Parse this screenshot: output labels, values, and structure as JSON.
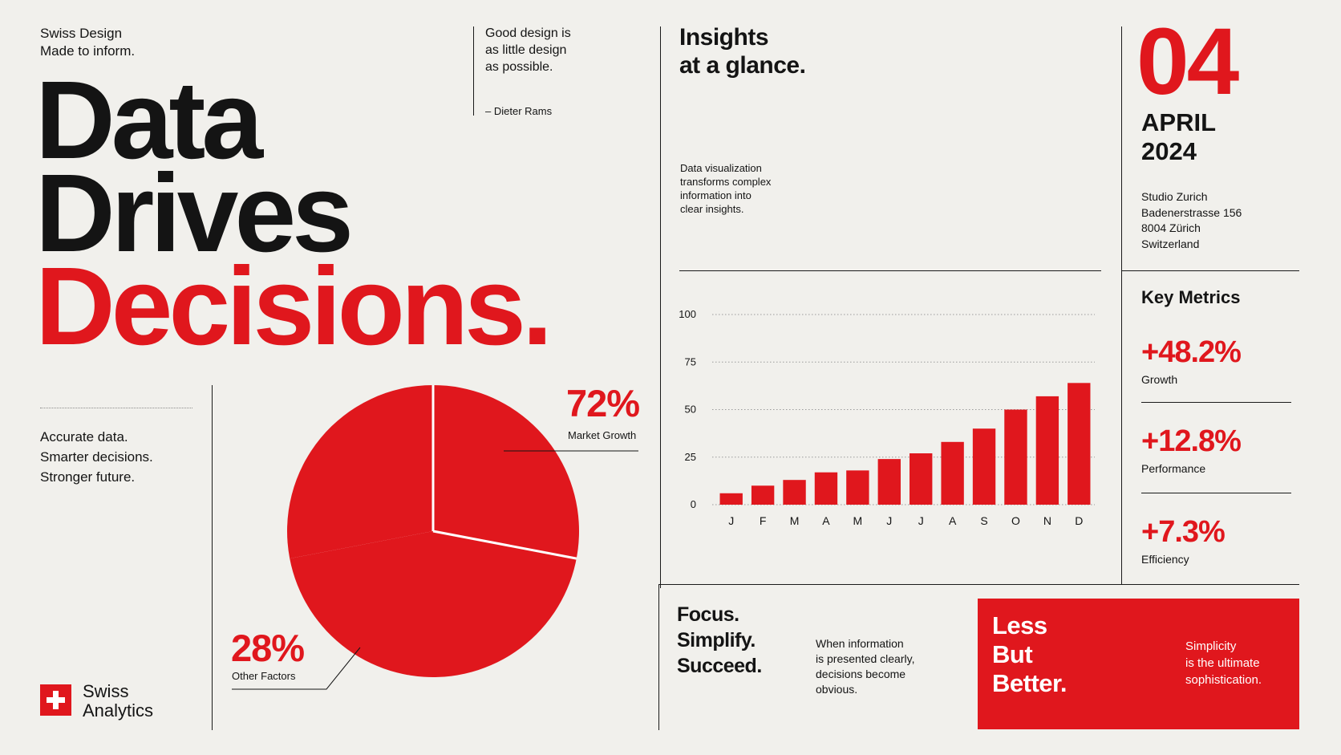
{
  "header": {
    "brand_line1": "Swiss Design",
    "brand_line2": "Made to inform.",
    "headline_line1": "Data",
    "headline_line2": "Drives",
    "headline_line3": "Decisions.",
    "quote_line1": "Good design is",
    "quote_line2": "as little design",
    "quote_line3": "as possible.",
    "quote_author": "– Dieter Rams"
  },
  "tagline": [
    "Accurate data.",
    "Smarter decisions.",
    "Stronger future."
  ],
  "insights": {
    "title_line1": "Insights",
    "title_line2": "at a glance.",
    "desc": [
      "Data visualization",
      "transforms complex",
      "information into",
      "clear insights."
    ]
  },
  "date": {
    "day": "04",
    "month": "APRIL",
    "year": "2024"
  },
  "address": [
    "Studio Zurich",
    "Badenerstrasse 156",
    "8004 Zürich",
    "Switzerland"
  ],
  "metrics": {
    "title": "Key Metrics",
    "items": [
      {
        "value": "+48.2%",
        "label": "Growth"
      },
      {
        "value": "+12.8%",
        "label": "Performance"
      },
      {
        "value": "+7.3%",
        "label": "Efficiency"
      }
    ]
  },
  "focus": {
    "lines": [
      "Focus.",
      "Simplify.",
      "Succeed."
    ],
    "note": [
      "When information",
      "is presented clearly,",
      "decisions become",
      "obvious."
    ]
  },
  "red_box": {
    "lines": [
      "Less",
      "But",
      "Better."
    ],
    "note": [
      "Simplicity",
      "is the ultimate",
      "sophistication."
    ]
  },
  "logo": {
    "line1": "Swiss",
    "line2": "Analytics"
  },
  "colors": {
    "accent": "#e0171d",
    "background": "#f1f0ec",
    "ink": "#141414"
  },
  "chart_data": [
    {
      "type": "pie",
      "slices": [
        {
          "label": "Market Growth",
          "value": 72,
          "value_label": "72%"
        },
        {
          "label": "Other Factors",
          "value": 28,
          "value_label": "28%"
        }
      ]
    },
    {
      "type": "bar",
      "categories": [
        "J",
        "F",
        "M",
        "A",
        "M",
        "J",
        "J",
        "A",
        "S",
        "O",
        "N",
        "D"
      ],
      "values": [
        6,
        10,
        13,
        17,
        18,
        24,
        27,
        33,
        40,
        50,
        57,
        64
      ],
      "y_ticks": [
        0,
        25,
        50,
        75,
        100
      ],
      "ylim": [
        0,
        100
      ],
      "grid": true
    }
  ]
}
